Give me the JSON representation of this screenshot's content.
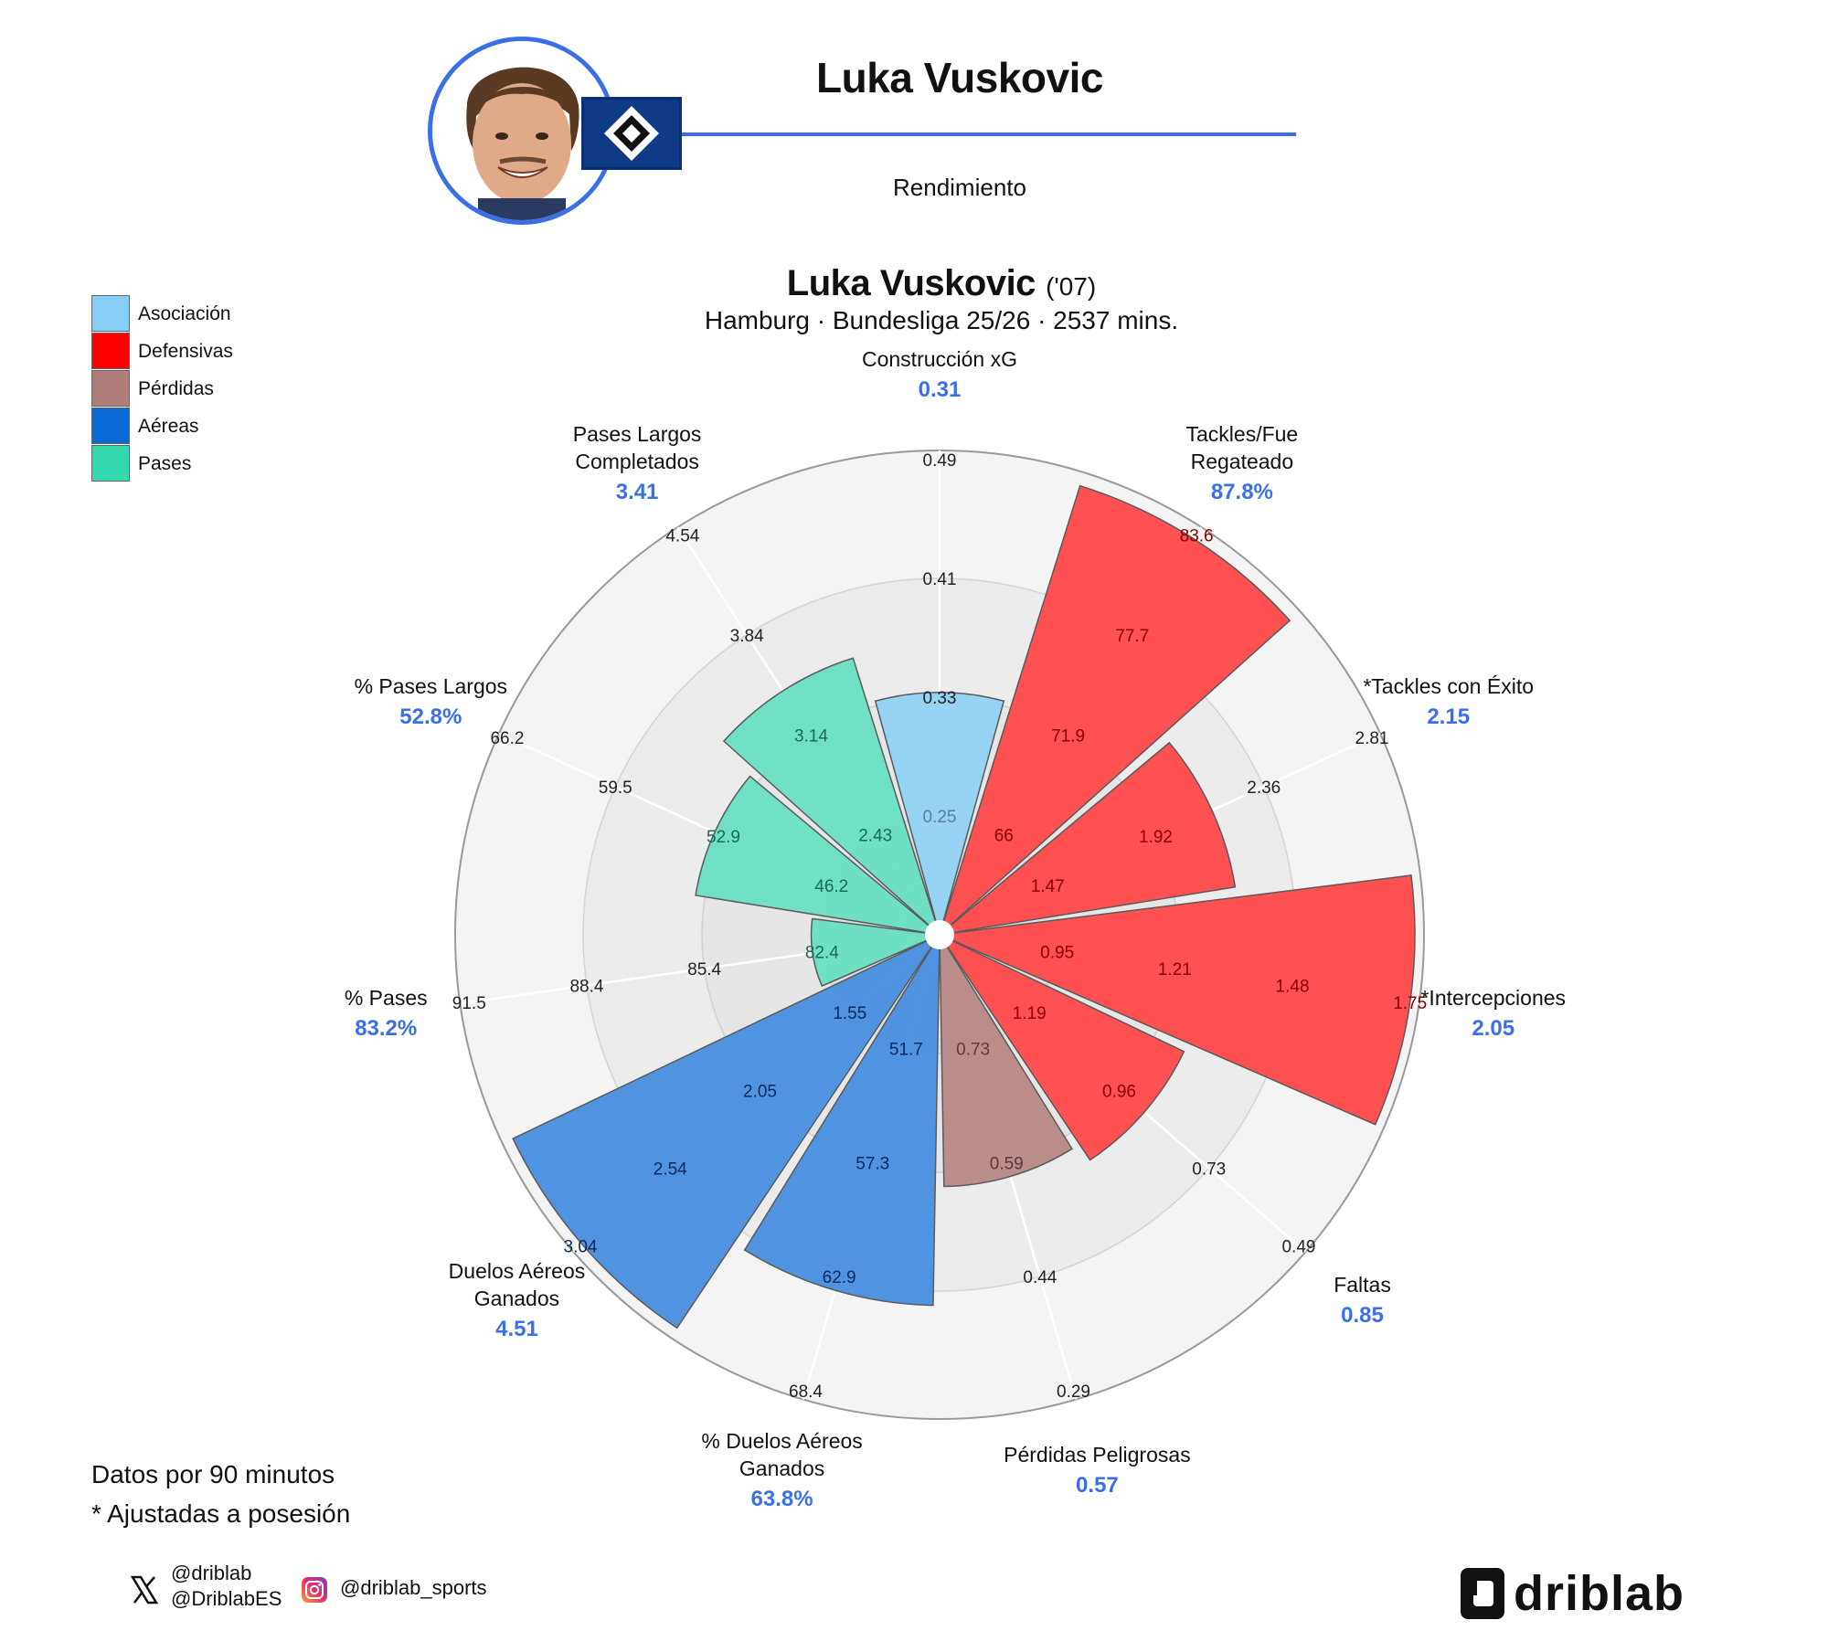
{
  "header": {
    "player_name": "Luka Vuskovic",
    "subtitle": "Rendimiento"
  },
  "chart_data": {
    "type": "radial_bar",
    "title_name": "Luka Vuskovic",
    "title_year": "('07)",
    "subtitle": "Hamburg · Bundesliga 25/26 · 2537 mins.",
    "legend": [
      {
        "label": "Asociación",
        "color": "#87cef6"
      },
      {
        "label": "Defensivas",
        "color": "#ff0000"
      },
      {
        "label": "Pérdidas",
        "color": "#b07c7a"
      },
      {
        "label": "Aéreas",
        "color": "#0a6ad6"
      },
      {
        "label": "Pases",
        "color": "#35d9b0"
      }
    ],
    "bar_colors": {
      "Asociación": "#93d2f4",
      "Defensivas": "#ff4a4c",
      "Pérdidas": "#b98a88",
      "Aéreas": "#4a90e0",
      "Pases": "#6adfc2"
    },
    "value_color": "#3a6fe8",
    "metrics": [
      {
        "label": [
          "Construcción xG"
        ],
        "value": "0.31",
        "group": "Asociación",
        "fill": 0.51,
        "ticks": [
          "0.25",
          "0.33",
          "0.41",
          "0.49"
        ],
        "tick_colors": [
          "#5a7fa0",
          "#222",
          "#222",
          "#222"
        ]
      },
      {
        "label": [
          "Tackles/Fue",
          "Regateado"
        ],
        "value": "87.8%",
        "group": "Defensivas",
        "fill": 0.99,
        "ticks": [
          "66",
          "71.9",
          "77.7",
          "83.6"
        ],
        "tick_colors": [
          "#8a0000",
          "#8a0000",
          "#8a0000",
          "#8a0000"
        ]
      },
      {
        "label": [
          "*Tackles con Éxito"
        ],
        "value": "2.15",
        "group": "Defensivas",
        "fill": 0.63,
        "ticks": [
          "1.47",
          "1.92",
          "2.36",
          "2.81"
        ],
        "tick_colors": [
          "#8a0000",
          "#8a0000",
          "#222",
          "#222"
        ]
      },
      {
        "label": [
          "*Intercepciones"
        ],
        "value": "2.05",
        "group": "Defensivas",
        "fill": 1.0,
        "ticks": [
          "0.95",
          "1.21",
          "1.48",
          "1.75"
        ],
        "tick_colors": [
          "#8a0000",
          "#8a0000",
          "#8a0000",
          "#8a0000"
        ]
      },
      {
        "label": [
          "Faltas"
        ],
        "value": "0.85",
        "group": "Defensivas",
        "fill": 0.57,
        "ticks": [
          "1.19",
          "0.96",
          "0.73",
          "0.49"
        ],
        "tick_colors": [
          "#8a0000",
          "#8a0000",
          "#222",
          "#222"
        ]
      },
      {
        "label": [
          "Pérdidas Peligrosas"
        ],
        "value": "0.57",
        "group": "Pérdidas",
        "fill": 0.53,
        "ticks": [
          "0.73",
          "0.59",
          "0.44",
          "0.29"
        ],
        "tick_colors": [
          "#5a3a3a",
          "#5a3a3a",
          "#222",
          "#222"
        ]
      },
      {
        "label": [
          "% Duelos Aéreos",
          "Ganados"
        ],
        "value": "63.8%",
        "group": "Aéreas",
        "fill": 0.78,
        "ticks": [
          "51.7",
          "57.3",
          "62.9",
          "68.4"
        ],
        "tick_colors": [
          "#0a2a5a",
          "#0a2a5a",
          "#0a2a5a",
          "#222"
        ]
      },
      {
        "label": [
          "Duelos Aéreos",
          "Ganados"
        ],
        "value": "4.51",
        "group": "Aéreas",
        "fill": 0.995,
        "ticks": [
          "1.55",
          "2.05",
          "2.54",
          "3.04"
        ],
        "tick_colors": [
          "#0a2a5a",
          "#0a2a5a",
          "#0a2a5a",
          "#0a2a5a"
        ]
      },
      {
        "label": [
          "% Pases"
        ],
        "value": "83.2%",
        "group": "Pases",
        "fill": 0.27,
        "ticks": [
          "82.4",
          "85.4",
          "88.4",
          "91.5"
        ],
        "tick_colors": [
          "#1a6a55",
          "#222",
          "#222",
          "#222"
        ]
      },
      {
        "label": [
          "% Pases Largos"
        ],
        "value": "52.8%",
        "group": "Pases",
        "fill": 0.52,
        "ticks": [
          "46.2",
          "52.9",
          "59.5",
          "66.2"
        ],
        "tick_colors": [
          "#1a6a55",
          "#1a6a55",
          "#222",
          "#222"
        ]
      },
      {
        "label": [
          "Pases Largos",
          "Completados"
        ],
        "value": "3.41",
        "group": "Pases",
        "fill": 0.61,
        "ticks": [
          "2.43",
          "3.14",
          "3.84",
          "4.54"
        ],
        "tick_colors": [
          "#1a6a55",
          "#1a6a55",
          "#222",
          "#222"
        ]
      }
    ]
  },
  "footer": {
    "note_line1": "Datos por 90 minutos",
    "note_line2": "* Ajustadas a posesión",
    "x_handle_1": "@driblab",
    "x_handle_2": "@DriblabES",
    "ig_handle": "@driblab_sports",
    "brand": "driblab"
  }
}
